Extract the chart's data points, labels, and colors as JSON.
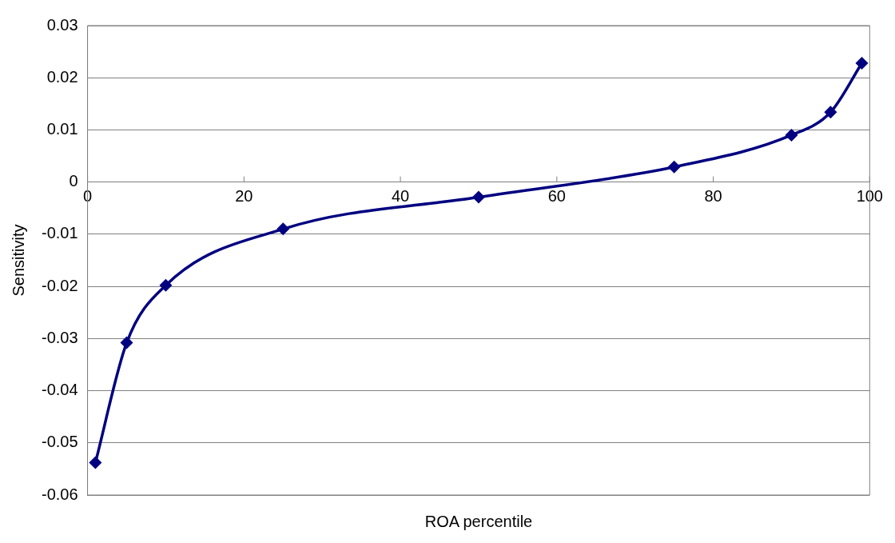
{
  "chart_data": {
    "type": "line",
    "xlabel": "ROA percentile",
    "ylabel": "Sensitivity",
    "x": [
      1,
      5,
      10,
      25,
      50,
      75,
      90,
      95,
      99
    ],
    "series": [
      {
        "color": "#000080",
        "values": [
          -0.0538,
          -0.0308,
          -0.0198,
          -0.009,
          -0.0029,
          0.0029,
          0.009,
          0.0134,
          0.0228
        ]
      }
    ],
    "xlim": [
      0,
      100
    ],
    "xticks": [
      0,
      20,
      40,
      60,
      80,
      100
    ],
    "ylim": [
      -0.06,
      0.03
    ],
    "yticks": [
      -0.06,
      -0.05,
      -0.04,
      -0.03,
      -0.02,
      -0.01,
      0,
      0.01,
      0.02,
      0.03
    ],
    "grid": "y",
    "legend": false,
    "marker": "diamond",
    "line_style": "solid"
  }
}
